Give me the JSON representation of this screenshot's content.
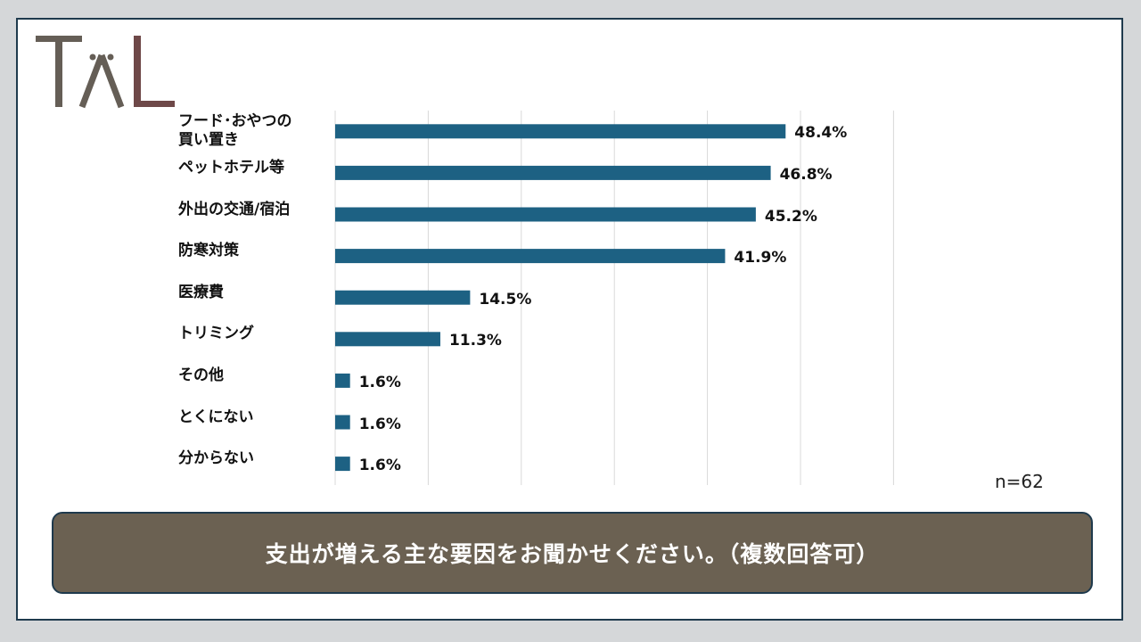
{
  "logo": {
    "text": "TAL",
    "color_main": "#655e56",
    "color_accent": "#6e4848"
  },
  "n_label": "n=62",
  "question": "支出が増える主な要因をお聞かせください。（複数回答可）",
  "colors": {
    "bar": "#1d6183",
    "grid": "#d9d9d9",
    "box": "#6b6152",
    "border": "#1f3a4d"
  },
  "chart_data": {
    "type": "bar",
    "orientation": "horizontal",
    "categories": [
      "フード･おやつの\n買い置き",
      "ペットホテル等",
      "外出の交通/宿泊",
      "防寒対策",
      "医療費",
      "トリミング",
      "その他",
      "とくにない",
      "分からない"
    ],
    "values": [
      48.4,
      46.8,
      45.2,
      41.9,
      14.5,
      11.3,
      1.6,
      1.6,
      1.6
    ],
    "value_labels": [
      "48.4%",
      "46.8%",
      "45.2%",
      "41.9%",
      "14.5%",
      "11.3%",
      "1.6%",
      "1.6%",
      "1.6%"
    ],
    "xlim": [
      0,
      60
    ],
    "grid": true
  }
}
